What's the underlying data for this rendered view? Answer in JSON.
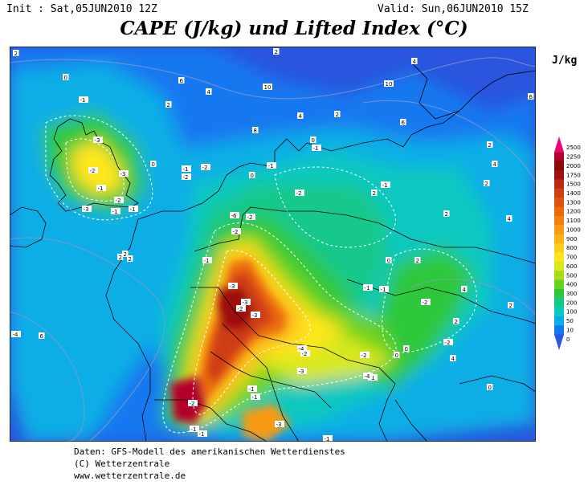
{
  "header": {
    "init": "Init : Sat,05JUN2010 12Z",
    "valid": "Valid: Sun,06JUN2010 15Z",
    "title": "CAPE (J/kg) und Lifted Index (°C)"
  },
  "legend": {
    "unit": "J/kg",
    "levels": [
      {
        "value": "2500",
        "color": "#e8007c"
      },
      {
        "value": "2250",
        "color": "#b2002a"
      },
      {
        "value": "2000",
        "color": "#8c0a0a"
      },
      {
        "value": "1750",
        "color": "#a01010"
      },
      {
        "value": "1500",
        "color": "#bb2a14"
      },
      {
        "value": "1400",
        "color": "#cf3d12"
      },
      {
        "value": "1300",
        "color": "#e0500e"
      },
      {
        "value": "1200",
        "color": "#eb6a0c"
      },
      {
        "value": "1100",
        "color": "#f38010"
      },
      {
        "value": "1000",
        "color": "#f79a14"
      },
      {
        "value": "900",
        "color": "#fbb41a"
      },
      {
        "value": "800",
        "color": "#ffcc1e"
      },
      {
        "value": "700",
        "color": "#ffe61e"
      },
      {
        "value": "600",
        "color": "#d8e81e"
      },
      {
        "value": "500",
        "color": "#a8dd1c"
      },
      {
        "value": "400",
        "color": "#6ad21c"
      },
      {
        "value": "300",
        "color": "#2ec83c"
      },
      {
        "value": "200",
        "color": "#14c88c"
      },
      {
        "value": "100",
        "color": "#0fc8c0"
      },
      {
        "value": "50",
        "color": "#0aaee6"
      },
      {
        "value": "10",
        "color": "#1478f0"
      },
      {
        "value": "0",
        "color": "#2a55dc"
      }
    ]
  },
  "map": {
    "lifted_index_labels": [
      "2",
      "0",
      "-1",
      "-3",
      "-2",
      "-3",
      "-1",
      "-2",
      "-1",
      "0",
      "6",
      "2",
      "4",
      "2",
      "4",
      "8",
      "10",
      "4",
      "2",
      "6",
      "10",
      "4",
      "-1",
      "0",
      "-1",
      "0",
      "-2",
      "-1",
      "2",
      "-3",
      "-6",
      "-2",
      "-2",
      "-3",
      "-3",
      "-2",
      "-3",
      "-1",
      "-2",
      "-1",
      "-2",
      "-1",
      "2",
      "2",
      "2",
      "4",
      "6",
      "-1",
      "0",
      "2",
      "4",
      "2",
      "-1",
      "-2",
      "-2",
      "0",
      "-4",
      "-2",
      "-1",
      "0",
      "-1",
      "-1",
      "-2",
      "-3",
      "-1",
      "-1",
      "-1",
      "-4",
      "-3",
      "6",
      "2",
      "2",
      "-2",
      "-4",
      "2",
      "2",
      "0",
      "4",
      "4"
    ]
  },
  "footer": {
    "line1": "Daten: GFS-Modell des amerikanischen Wetterdienstes",
    "line2": "(C) Wetterzentrale",
    "line3": "www.wetterzentrale.de"
  }
}
